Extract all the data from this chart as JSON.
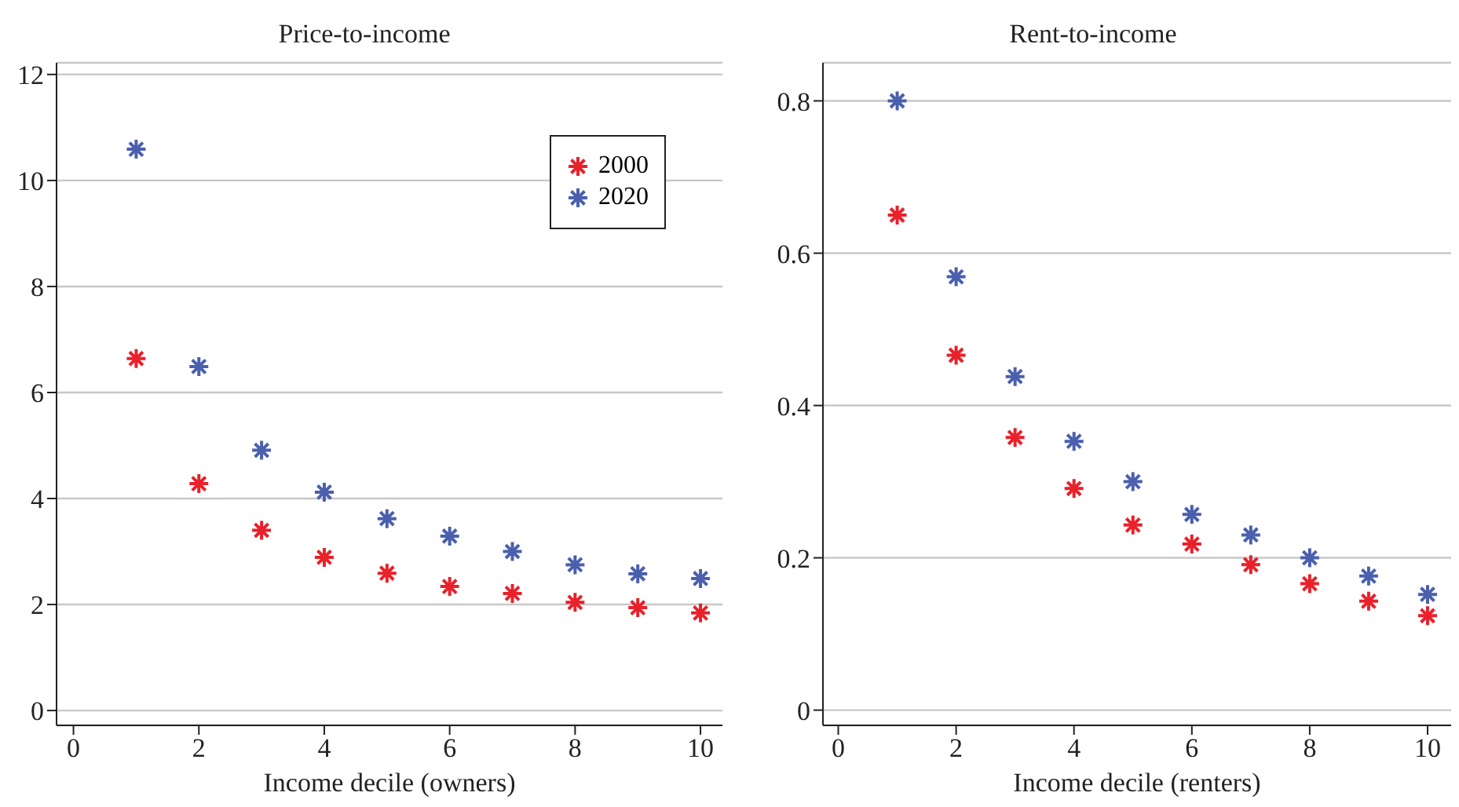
{
  "chart_data": [
    {
      "type": "scatter",
      "title": "Price-to-income",
      "xlabel": "Income decile (owners)",
      "x": [
        1,
        2,
        3,
        4,
        5,
        6,
        7,
        8,
        9,
        10
      ],
      "series": [
        {
          "name": "2000",
          "color": "#e8212b",
          "values": [
            6.64,
            4.28,
            3.4,
            2.89,
            2.59,
            2.34,
            2.21,
            2.04,
            1.94,
            1.84
          ]
        },
        {
          "name": "2020",
          "color": "#4a5fae",
          "values": [
            10.59,
            6.49,
            4.91,
            4.12,
            3.62,
            3.29,
            3.0,
            2.75,
            2.58,
            2.49
          ]
        }
      ],
      "xlim": [
        -0.27,
        10.35
      ],
      "xticks": [
        0,
        2,
        4,
        6,
        8,
        10
      ],
      "ylim": [
        -0.28,
        12.22
      ],
      "yticks": [
        0,
        2,
        4,
        6,
        8,
        10,
        12
      ],
      "grid": "y",
      "legend": "top right",
      "marker": "cross"
    },
    {
      "type": "scatter",
      "title": "Rent-to-income",
      "xlabel": "Income decile (renters)",
      "x": [
        1,
        2,
        3,
        4,
        5,
        6,
        7,
        8,
        9,
        10
      ],
      "series": [
        {
          "color": "#e8212b",
          "values": [
            0.65,
            0.466,
            0.358,
            0.291,
            0.243,
            0.218,
            0.191,
            0.166,
            0.143,
            0.124
          ]
        },
        {
          "color": "#4a5fae",
          "values": [
            0.8,
            0.569,
            0.438,
            0.353,
            0.3,
            0.257,
            0.23,
            0.2,
            0.176,
            0.152
          ]
        }
      ],
      "xlim": [
        -0.26,
        10.4
      ],
      "xticks": [
        0,
        2,
        4,
        6,
        8,
        10
      ],
      "ylim": [
        -0.02,
        0.85
      ],
      "yticks": [
        0,
        0.2,
        0.4,
        0.6,
        0.8
      ],
      "grid": "y",
      "legend": false,
      "marker": "cross"
    }
  ]
}
